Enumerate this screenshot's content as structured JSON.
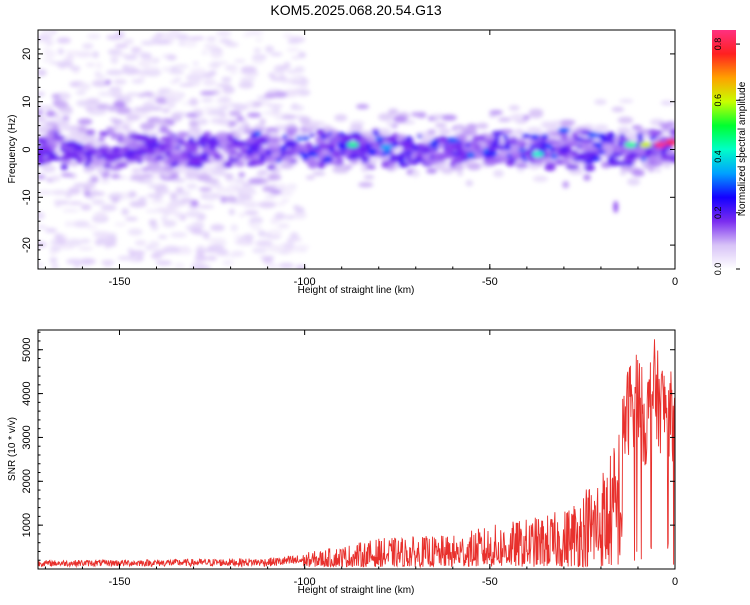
{
  "title": "KOM5.2025.068.20.54.G13",
  "colors": {
    "snr_line": "#e8302c",
    "axis": "#000000",
    "colorbar_stops": [
      "#ffffff",
      "#d7c2f7",
      "#7a2cf0",
      "#1400ff",
      "#00a0ff",
      "#00ffc8",
      "#00ff30",
      "#c8ff00",
      "#ffa000",
      "#ff2020",
      "#ff3080"
    ]
  },
  "chart_data": [
    {
      "type": "heatmap",
      "title": "KOM5.2025.068.20.54.G13",
      "xlabel": "Height of straight line (km)",
      "ylabel": "Frequency (Hz)",
      "xlim": [
        -172,
        0
      ],
      "ylim": [
        -25,
        25
      ],
      "x_ticks": [
        -150,
        -100,
        -50,
        0
      ],
      "y_ticks": [
        -20,
        -10,
        0,
        10,
        20
      ],
      "colorbar": {
        "label": "Normalized spectral amplitude",
        "range": [
          0,
          0.85
        ],
        "ticks": [
          0.0,
          0.2,
          0.4,
          0.6,
          0.8
        ]
      },
      "description_features": {
        "main_band_center_hz": 0,
        "main_band_halfwidth_hz": 4,
        "diffuse_region_x": [
          -172,
          -100
        ],
        "diffuse_region_hz": [
          -25,
          25
        ],
        "strong_points": [
          {
            "x": -4,
            "y": 1,
            "v": 0.85
          },
          {
            "x": -1,
            "y": 1.5,
            "v": 0.8
          },
          {
            "x": -8,
            "y": 1,
            "v": 0.6
          },
          {
            "x": -12,
            "y": 1,
            "v": 0.45
          },
          {
            "x": -37,
            "y": -1,
            "v": 0.42
          },
          {
            "x": -87,
            "y": 1,
            "v": 0.45
          },
          {
            "x": -78,
            "y": 0.5,
            "v": 0.35
          },
          {
            "x": -60,
            "y": 2,
            "v": 0.3
          },
          {
            "x": -30,
            "y": 4,
            "v": 0.3
          },
          {
            "x": -22,
            "y": 3,
            "v": 0.3
          }
        ],
        "isolated_blob": {
          "x": -16,
          "y": -12,
          "v": 0.15
        }
      }
    },
    {
      "type": "line",
      "xlabel": "Height of straight line (km)",
      "ylabel": "SNR (10 * v/v)",
      "xlim": [
        -172,
        0
      ],
      "ylim": [
        0,
        5450
      ],
      "x_ticks": [
        -150,
        -100,
        -50,
        0
      ],
      "y_ticks": [
        1000,
        2000,
        3000,
        4000,
        5000
      ],
      "envelope": {
        "x": [
          -172,
          -140,
          -110,
          -100,
          -90,
          -80,
          -70,
          -60,
          -50,
          -40,
          -30,
          -22,
          -18,
          -16,
          -14,
          -12,
          -10,
          -8,
          -6,
          -4,
          -2,
          0
        ],
        "y": [
          180,
          200,
          230,
          320,
          480,
          650,
          700,
          720,
          950,
          1100,
          1300,
          2100,
          2500,
          3000,
          4100,
          4900,
          5200,
          4100,
          5400,
          4800,
          4700,
          4300
        ]
      },
      "series": [
        {
          "values_note": "",
          "color": "#e8302c"
        }
      ]
    }
  ]
}
